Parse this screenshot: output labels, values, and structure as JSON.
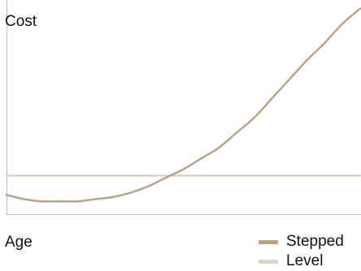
{
  "chart_data": {
    "type": "line",
    "title": "",
    "ylabel": "Cost",
    "xlabel": "Age",
    "grid": false,
    "legend_position": "bottom-right",
    "xlim": [
      0,
      1
    ],
    "ylim": [
      0,
      1
    ],
    "series": [
      {
        "name": "Stepped",
        "color": "#b5a58a",
        "x": [
          0,
          0.05,
          0.1,
          0.15,
          0.2,
          0.25,
          0.3,
          0.35,
          0.4,
          0.45,
          0.5,
          0.55,
          0.6,
          0.65,
          0.7,
          0.75,
          0.8,
          0.85,
          0.9,
          0.95,
          1.0
        ],
        "y": [
          0.09,
          0.07,
          0.06,
          0.06,
          0.06,
          0.07,
          0.08,
          0.1,
          0.13,
          0.17,
          0.21,
          0.26,
          0.31,
          0.38,
          0.45,
          0.54,
          0.63,
          0.72,
          0.8,
          0.89,
          0.96
        ]
      },
      {
        "name": "Level",
        "color": "#dbd3c3",
        "x": [
          0,
          1
        ],
        "y": [
          0.18,
          0.18
        ]
      }
    ]
  }
}
